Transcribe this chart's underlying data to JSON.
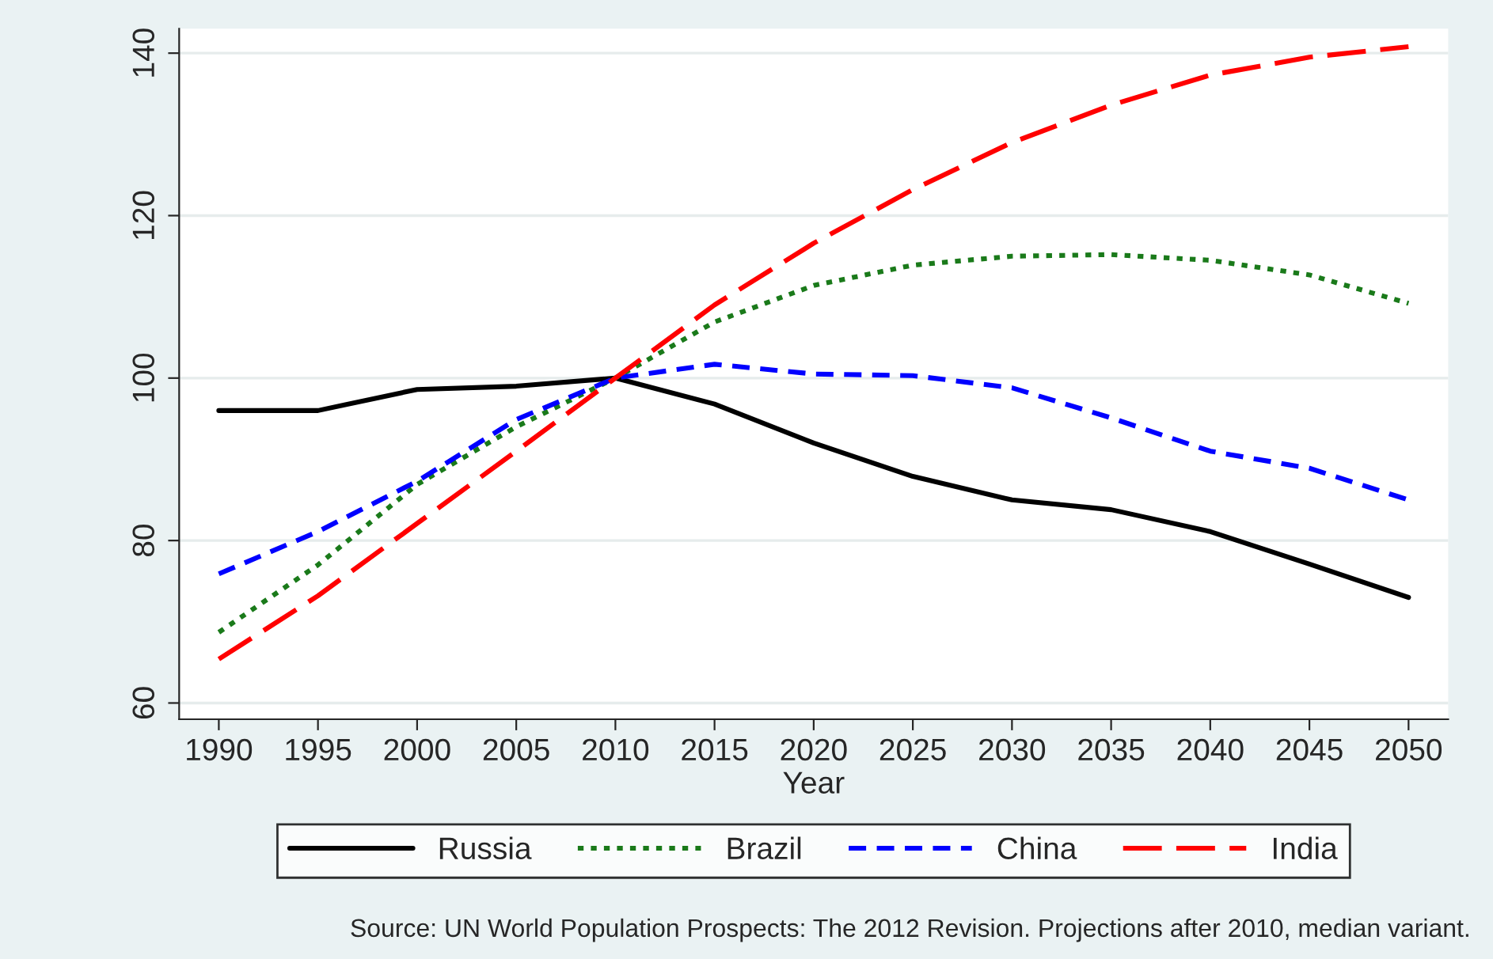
{
  "chart_data": {
    "type": "line",
    "xlabel": "Year",
    "x": [
      1990,
      1995,
      2000,
      2005,
      2010,
      2015,
      2020,
      2025,
      2030,
      2035,
      2040,
      2045,
      2050
    ],
    "series": [
      {
        "name": "Russia",
        "color": "#000000",
        "line_style": "solid",
        "values": [
          96.0,
          96.0,
          98.6,
          99.0,
          100,
          96.8,
          92.0,
          87.9,
          85.0,
          83.8,
          81.1,
          77.1,
          73.0
        ]
      },
      {
        "name": "Brazil",
        "color": "#1a7a1a",
        "line_style": "dotted",
        "values": [
          68.7,
          77.0,
          86.9,
          94.0,
          100,
          106.9,
          111.4,
          113.9,
          115.0,
          115.2,
          114.5,
          112.7,
          109.2
        ]
      },
      {
        "name": "China",
        "color": "#0000ff",
        "line_style": "dashed",
        "values": [
          75.9,
          81.1,
          87.3,
          94.9,
          100,
          101.7,
          100.5,
          100.3,
          98.8,
          95.1,
          91.0,
          88.9,
          85.0
        ]
      },
      {
        "name": "India",
        "color": "#ff0000",
        "line_style": "longdash",
        "values": [
          65.4,
          73.2,
          82.1,
          91.0,
          100,
          109.0,
          116.6,
          123.2,
          129.0,
          133.6,
          137.3,
          139.5,
          140.8
        ]
      }
    ],
    "xlim": [
      1988,
      2052
    ],
    "xticks": [
      1990,
      1995,
      2000,
      2005,
      2010,
      2015,
      2020,
      2025,
      2030,
      2035,
      2040,
      2045,
      2050
    ],
    "ylim": [
      58,
      143
    ],
    "yticks": [
      60,
      80,
      100,
      120,
      140
    ],
    "grid": "y",
    "legend": "bottom",
    "annotations": [
      "Source: UN World Population Prospects: The 2012 Revision. Projections after 2010, median variant."
    ]
  }
}
